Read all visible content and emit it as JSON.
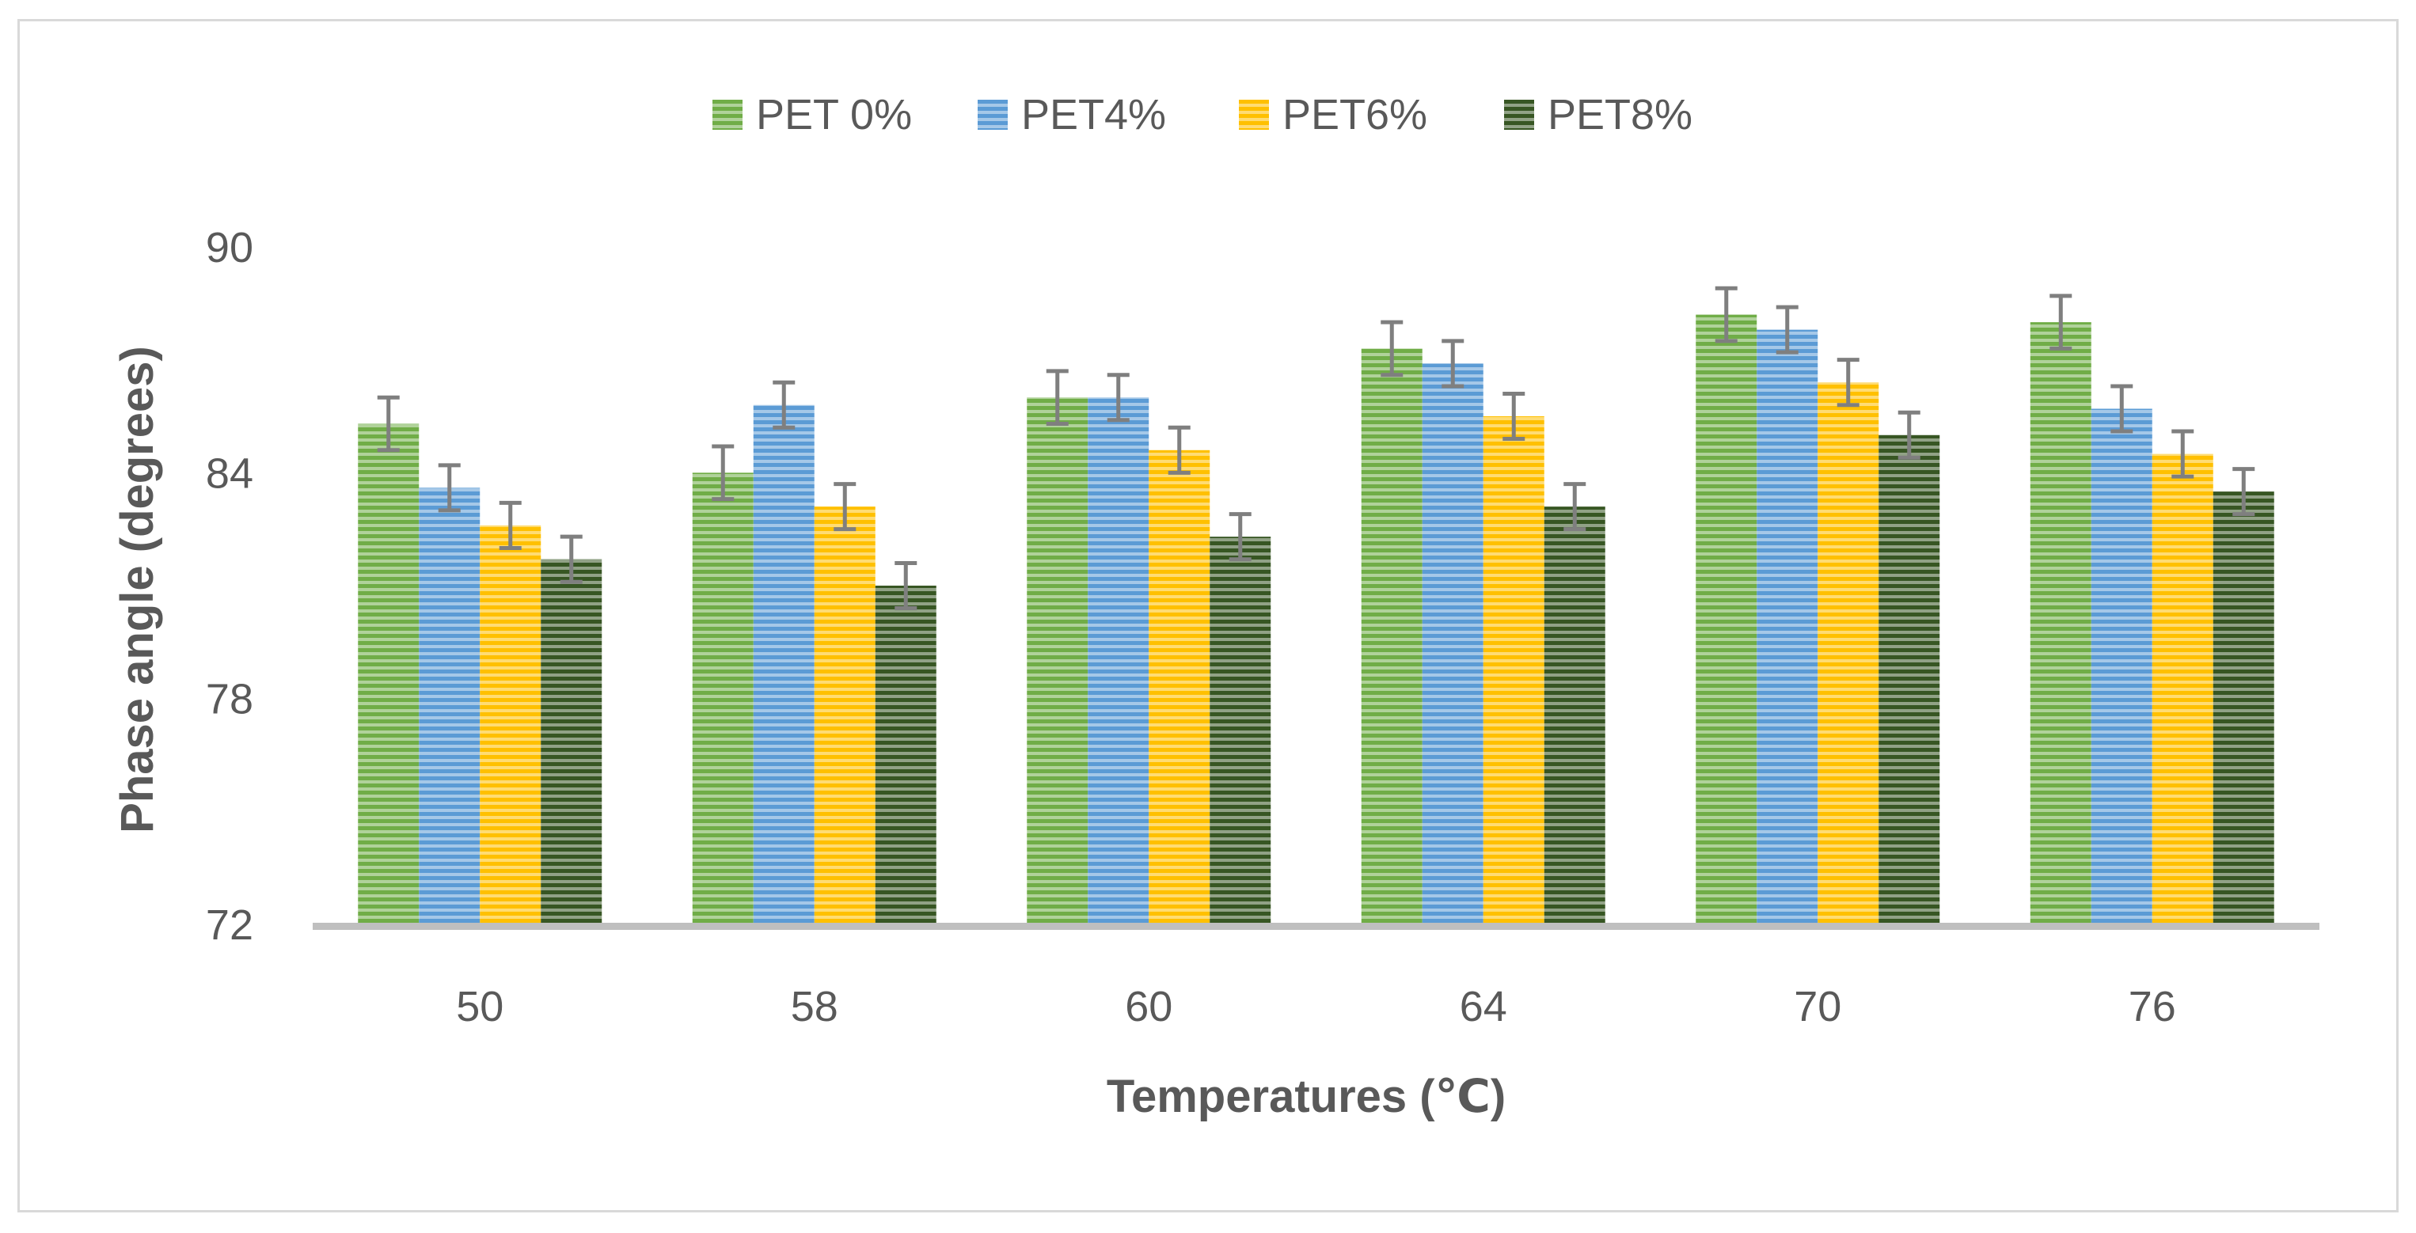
{
  "chart_data": {
    "type": "bar",
    "title": "",
    "xlabel": "Temperatures (℃)",
    "ylabel": "Phase angle (degrees)",
    "ylim": [
      72,
      90
    ],
    "yticks": [
      "72",
      "78",
      "84",
      "90"
    ],
    "ytick_values": [
      72,
      78,
      84,
      90
    ],
    "categories": [
      "50",
      "58",
      "60",
      "64",
      "70",
      "76"
    ],
    "legend_position": "top-center",
    "grid": false,
    "series": [
      {
        "name": "PET 0%",
        "color": "#70ad47",
        "values": [
          85.3,
          84.0,
          86.0,
          87.3,
          88.2,
          88.0
        ],
        "errors": [
          0.7,
          0.7,
          0.7,
          0.7,
          0.7,
          0.7
        ]
      },
      {
        "name": "PET4%",
        "color": "#5b9bd5",
        "values": [
          83.6,
          85.8,
          86.0,
          86.9,
          87.8,
          85.7
        ],
        "errors": [
          0.6,
          0.6,
          0.6,
          0.6,
          0.6,
          0.6
        ]
      },
      {
        "name": "PET6%",
        "color": "#ffc000",
        "values": [
          82.6,
          83.1,
          84.6,
          85.5,
          86.4,
          84.5
        ],
        "errors": [
          0.6,
          0.6,
          0.6,
          0.6,
          0.6,
          0.6
        ]
      },
      {
        "name": "PET8%",
        "color": "#375623",
        "values": [
          81.7,
          81.0,
          82.3,
          83.1,
          85.0,
          83.5
        ],
        "errors": [
          0.6,
          0.6,
          0.6,
          0.6,
          0.6,
          0.6
        ]
      }
    ]
  }
}
